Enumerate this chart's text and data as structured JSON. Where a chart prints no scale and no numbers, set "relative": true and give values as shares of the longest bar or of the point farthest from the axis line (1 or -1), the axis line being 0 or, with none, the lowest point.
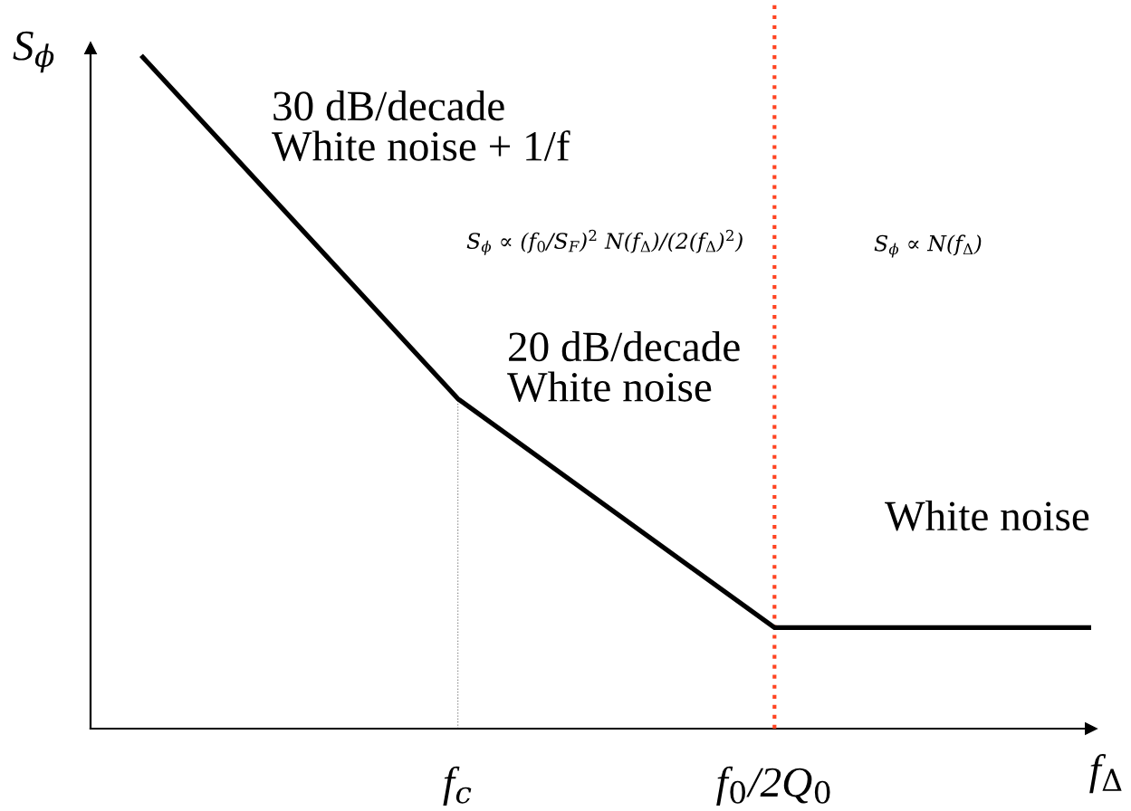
{
  "chart_data": {
    "type": "line",
    "relative": true,
    "xlabel": "f$_{Δ}$",
    "ylabel": "S$_{ϕ}$",
    "categories": [
      null,
      "f$_{c}$",
      "f$_{0}$/2Q$_{0}$",
      null
    ],
    "series": [
      {
        "color": "#000000",
        "values": [
          1,
          0.49,
          0.15,
          0.15
        ]
      }
    ],
    "line_style": "solid",
    "ref_lines": [
      {
        "axis": "x",
        "value": "f$_{0}$/2Q$_{0}$",
        "color": "#ff4422",
        "line_style": "dotted"
      }
    ],
    "annotations": [
      "30 dB/decade\nWhite noise + 1/f",
      "20 dB/decade\nWhite noise",
      "S$_{ϕ}$ ∝ (f$_{0}$/S$_{F}$)$^{2}$ N(f$_{Δ}$)/(2(f$_{Δ}$)$^{2}$)",
      "S$_{ϕ}$ ∝ N(f$_{Δ}$)",
      "White noise"
    ]
  }
}
